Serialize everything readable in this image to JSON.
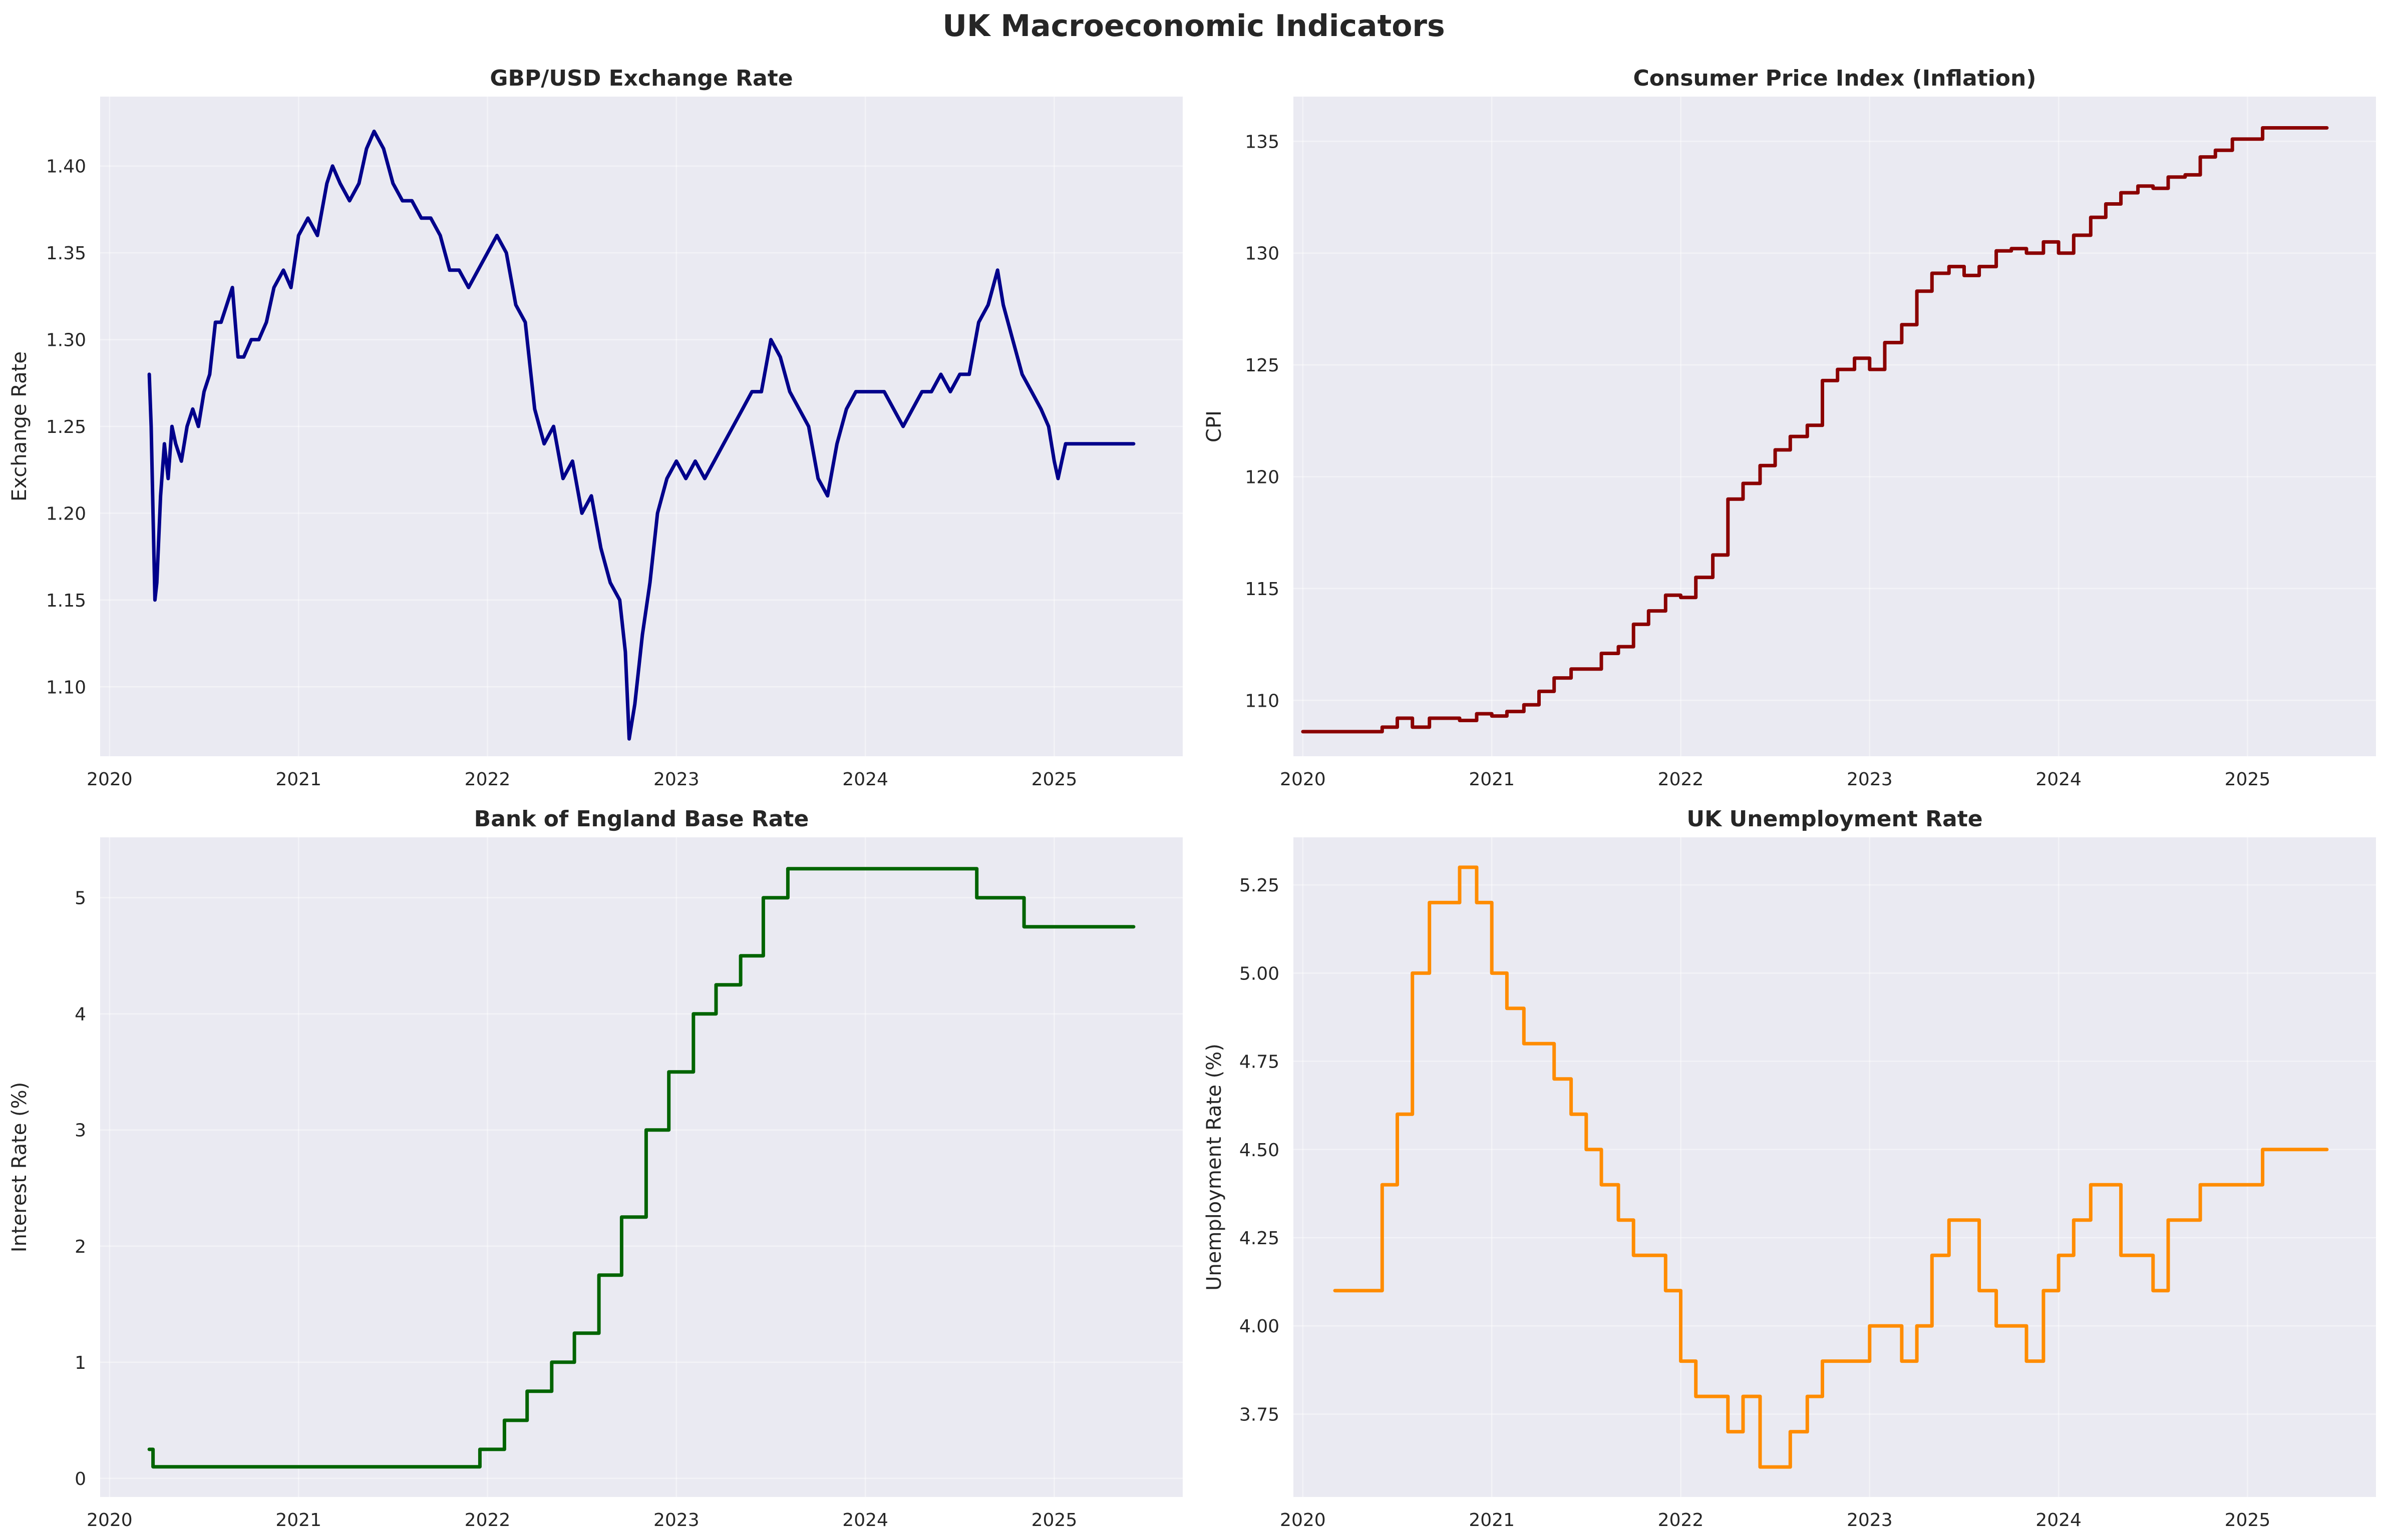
{
  "figure": {
    "title": "UK Macroeconomic Indicators"
  },
  "chart_data": [
    {
      "type": "line",
      "title": "GBP/USD Exchange Rate",
      "xlabel": "",
      "ylabel": "Exchange Rate",
      "xlim": [
        2019.95,
        2025.68
      ],
      "ylim": [
        1.06,
        1.44
      ],
      "x_ticks": [
        "2020",
        "2021",
        "2022",
        "2023",
        "2024",
        "2025"
      ],
      "x_tick_values": [
        2020,
        2021,
        2022,
        2023,
        2024,
        2025
      ],
      "y_ticks": [
        "1.10",
        "1.15",
        "1.20",
        "1.25",
        "1.30",
        "1.35",
        "1.40"
      ],
      "y_tick_values": [
        1.1,
        1.15,
        1.2,
        1.25,
        1.3,
        1.35,
        1.4
      ],
      "grid": true,
      "color": "#00008b",
      "series": [
        {
          "x": [
            2020.21,
            2020.22,
            2020.23,
            2020.24,
            2020.25,
            2020.27,
            2020.29,
            2020.31,
            2020.33,
            2020.35,
            2020.38,
            2020.41,
            2020.44,
            2020.47,
            2020.5,
            2020.53,
            2020.56,
            2020.59,
            2020.62,
            2020.65,
            2020.68,
            2020.71,
            2020.75,
            2020.79,
            2020.83,
            2020.87,
            2020.92,
            2020.96,
            2021.0,
            2021.05,
            2021.1,
            2021.15,
            2021.18,
            2021.22,
            2021.27,
            2021.32,
            2021.36,
            2021.4,
            2021.45,
            2021.5,
            2021.55,
            2021.6,
            2021.65,
            2021.7,
            2021.75,
            2021.8,
            2021.85,
            2021.9,
            2021.95,
            2022.0,
            2022.05,
            2022.1,
            2022.15,
            2022.2,
            2022.25,
            2022.3,
            2022.35,
            2022.4,
            2022.45,
            2022.5,
            2022.55,
            2022.6,
            2022.65,
            2022.7,
            2022.73,
            2022.75,
            2022.78,
            2022.82,
            2022.86,
            2022.9,
            2022.95,
            2023.0,
            2023.05,
            2023.1,
            2023.15,
            2023.2,
            2023.25,
            2023.3,
            2023.35,
            2023.4,
            2023.45,
            2023.5,
            2023.55,
            2023.6,
            2023.65,
            2023.7,
            2023.75,
            2023.8,
            2023.85,
            2023.9,
            2023.95,
            2024.0,
            2024.05,
            2024.1,
            2024.15,
            2024.2,
            2024.25,
            2024.3,
            2024.35,
            2024.4,
            2024.45,
            2024.5,
            2024.55,
            2024.6,
            2024.65,
            2024.7,
            2024.73,
            2024.78,
            2024.83,
            2024.88,
            2024.93,
            2024.97,
            2025.0,
            2025.02,
            2025.04,
            2025.06,
            2025.1,
            2025.2,
            2025.3,
            2025.42
          ],
          "y": [
            1.28,
            1.25,
            1.2,
            1.15,
            1.16,
            1.21,
            1.24,
            1.22,
            1.25,
            1.24,
            1.23,
            1.25,
            1.26,
            1.25,
            1.27,
            1.28,
            1.31,
            1.31,
            1.32,
            1.33,
            1.29,
            1.29,
            1.3,
            1.3,
            1.31,
            1.33,
            1.34,
            1.33,
            1.36,
            1.37,
            1.36,
            1.39,
            1.4,
            1.39,
            1.38,
            1.39,
            1.41,
            1.42,
            1.41,
            1.39,
            1.38,
            1.38,
            1.37,
            1.37,
            1.36,
            1.34,
            1.34,
            1.33,
            1.34,
            1.35,
            1.36,
            1.35,
            1.32,
            1.31,
            1.26,
            1.24,
            1.25,
            1.22,
            1.23,
            1.2,
            1.21,
            1.18,
            1.16,
            1.15,
            1.12,
            1.07,
            1.09,
            1.13,
            1.16,
            1.2,
            1.22,
            1.23,
            1.22,
            1.23,
            1.22,
            1.23,
            1.24,
            1.25,
            1.26,
            1.27,
            1.27,
            1.3,
            1.29,
            1.27,
            1.26,
            1.25,
            1.22,
            1.21,
            1.24,
            1.26,
            1.27,
            1.27,
            1.27,
            1.27,
            1.26,
            1.25,
            1.26,
            1.27,
            1.27,
            1.28,
            1.27,
            1.28,
            1.28,
            1.31,
            1.32,
            1.34,
            1.32,
            1.3,
            1.28,
            1.27,
            1.26,
            1.25,
            1.23,
            1.22,
            1.23,
            1.24,
            1.24,
            1.24,
            1.24,
            1.24
          ]
        }
      ]
    },
    {
      "type": "line",
      "title": "Consumer Price Index (Inflation)",
      "xlabel": "",
      "ylabel": "CPI",
      "xlim": [
        2019.95,
        2025.68
      ],
      "ylim": [
        107.5,
        137.0
      ],
      "x_ticks": [
        "2020",
        "2021",
        "2022",
        "2023",
        "2024",
        "2025"
      ],
      "x_tick_values": [
        2020,
        2021,
        2022,
        2023,
        2024,
        2025
      ],
      "y_ticks": [
        "110",
        "115",
        "120",
        "125",
        "130",
        "135"
      ],
      "y_tick_values": [
        110,
        115,
        120,
        125,
        130,
        135
      ],
      "grid": true,
      "step": true,
      "color": "#8b0000",
      "series": [
        {
          "x": [
            2020.0,
            2020.42,
            2020.5,
            2020.58,
            2020.67,
            2020.75,
            2020.83,
            2020.92,
            2021.0,
            2021.08,
            2021.17,
            2021.25,
            2021.33,
            2021.42,
            2021.5,
            2021.58,
            2021.67,
            2021.75,
            2021.83,
            2021.92,
            2022.0,
            2022.08,
            2022.17,
            2022.25,
            2022.33,
            2022.42,
            2022.5,
            2022.58,
            2022.67,
            2022.75,
            2022.83,
            2022.92,
            2023.0,
            2023.08,
            2023.17,
            2023.25,
            2023.33,
            2023.42,
            2023.5,
            2023.58,
            2023.67,
            2023.75,
            2023.83,
            2023.92,
            2024.0,
            2024.08,
            2024.17,
            2024.25,
            2024.33,
            2024.42,
            2024.5,
            2024.58,
            2024.67,
            2024.75,
            2024.83,
            2024.92,
            2025.0,
            2025.08,
            2025.42
          ],
          "y": [
            108.6,
            108.8,
            109.2,
            108.8,
            109.2,
            109.2,
            109.1,
            109.4,
            109.3,
            109.5,
            109.8,
            110.4,
            111.0,
            111.4,
            111.4,
            112.1,
            112.4,
            113.4,
            114.0,
            114.7,
            114.6,
            115.5,
            116.5,
            119.0,
            119.7,
            120.5,
            121.2,
            121.8,
            122.3,
            124.3,
            124.8,
            125.3,
            124.8,
            126.0,
            126.8,
            128.3,
            129.1,
            129.4,
            129.0,
            129.4,
            130.1,
            130.2,
            130.0,
            130.5,
            130.0,
            130.8,
            131.6,
            132.2,
            132.7,
            133.0,
            132.9,
            133.4,
            133.5,
            134.3,
            134.6,
            135.1,
            135.1,
            135.6,
            135.6
          ]
        }
      ]
    },
    {
      "type": "line",
      "title": "Bank of England Base Rate",
      "xlabel": "",
      "ylabel": "Interest Rate (%)",
      "xlim": [
        2019.95,
        2025.68
      ],
      "ylim": [
        -0.16,
        5.52
      ],
      "x_ticks": [
        "2020",
        "2021",
        "2022",
        "2023",
        "2024",
        "2025"
      ],
      "x_tick_values": [
        2020,
        2021,
        2022,
        2023,
        2024,
        2025
      ],
      "y_ticks": [
        "0",
        "1",
        "2",
        "3",
        "4",
        "5"
      ],
      "y_tick_values": [
        0,
        1,
        2,
        3,
        4,
        5
      ],
      "grid": true,
      "step": true,
      "color": "#006400",
      "series": [
        {
          "x": [
            2020.21,
            2020.23,
            2021.96,
            2022.09,
            2022.21,
            2022.34,
            2022.46,
            2022.59,
            2022.71,
            2022.84,
            2022.96,
            2023.09,
            2023.21,
            2023.34,
            2023.46,
            2023.59,
            2024.59,
            2024.84,
            2025.42
          ],
          "y": [
            0.25,
            0.1,
            0.25,
            0.5,
            0.75,
            1.0,
            1.25,
            1.75,
            2.25,
            3.0,
            3.5,
            4.0,
            4.25,
            4.5,
            5.0,
            5.25,
            5.0,
            4.75,
            4.75
          ]
        }
      ]
    },
    {
      "type": "line",
      "title": "UK Unemployment Rate",
      "xlabel": "",
      "ylabel": "Unemployment Rate (%)",
      "xlim": [
        2019.95,
        2025.68
      ],
      "ylim": [
        3.515,
        5.385
      ],
      "x_ticks": [
        "2020",
        "2021",
        "2022",
        "2023",
        "2024",
        "2025"
      ],
      "x_tick_values": [
        2020,
        2021,
        2022,
        2023,
        2024,
        2025
      ],
      "y_ticks": [
        "3.75",
        "4.00",
        "4.25",
        "4.50",
        "4.75",
        "5.00",
        "5.25"
      ],
      "y_tick_values": [
        3.75,
        4.0,
        4.25,
        4.5,
        4.75,
        5.0,
        5.25
      ],
      "grid": true,
      "step": true,
      "color": "#ff8c00",
      "series": [
        {
          "x": [
            2020.17,
            2020.42,
            2020.5,
            2020.58,
            2020.67,
            2020.83,
            2020.92,
            2021.0,
            2021.08,
            2021.17,
            2021.33,
            2021.42,
            2021.5,
            2021.58,
            2021.67,
            2021.75,
            2021.92,
            2022.0,
            2022.08,
            2022.25,
            2022.33,
            2022.42,
            2022.58,
            2022.67,
            2022.75,
            2023.0,
            2023.17,
            2023.25,
            2023.33,
            2023.42,
            2023.58,
            2023.67,
            2023.83,
            2023.92,
            2024.0,
            2024.08,
            2024.17,
            2024.33,
            2024.5,
            2024.58,
            2024.75,
            2025.08,
            2025.42
          ],
          "y": [
            4.1,
            4.4,
            4.6,
            5.0,
            5.2,
            5.3,
            5.2,
            5.0,
            4.9,
            4.8,
            4.7,
            4.6,
            4.5,
            4.4,
            4.3,
            4.2,
            4.1,
            3.9,
            3.8,
            3.7,
            3.8,
            3.6,
            3.7,
            3.8,
            3.9,
            4.0,
            3.9,
            4.0,
            4.2,
            4.3,
            4.1,
            4.0,
            3.9,
            4.1,
            4.2,
            4.3,
            4.4,
            4.2,
            4.1,
            4.3,
            4.4,
            4.5,
            4.5
          ]
        }
      ]
    }
  ]
}
